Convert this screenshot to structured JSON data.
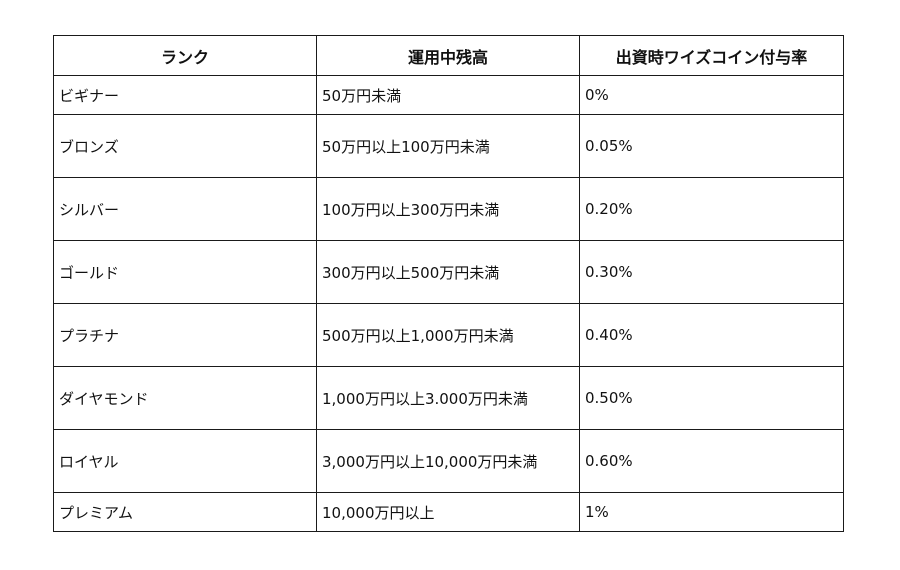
{
  "table": {
    "headers": [
      "ランク",
      "運用中残高",
      "出資時ワイズコイン付与率"
    ],
    "rows": [
      {
        "rank": "ビギナー",
        "balance": "50万円未満",
        "rate": "0%"
      },
      {
        "rank": "ブロンズ",
        "balance": "50万円以上100万円未満",
        "rate": "0.05%"
      },
      {
        "rank": "シルバー",
        "balance": "100万円以上300万円未満",
        "rate": "0.20%"
      },
      {
        "rank": "ゴールド",
        "balance": "300万円以上500万円未満",
        "rate": "0.30%"
      },
      {
        "rank": "プラチナ",
        "balance": "500万円以上1,000万円未満",
        "rate": "0.40%"
      },
      {
        "rank": "ダイヤモンド",
        "balance": "1,000万円以上3.000万円未満",
        "rate": "0.50%"
      },
      {
        "rank": "ロイヤル",
        "balance": "3,000万円以上10,000万円未満",
        "rate": "0.60%"
      },
      {
        "rank": "プレミアム",
        "balance": "10,000万円以上",
        "rate": "1%"
      }
    ]
  }
}
